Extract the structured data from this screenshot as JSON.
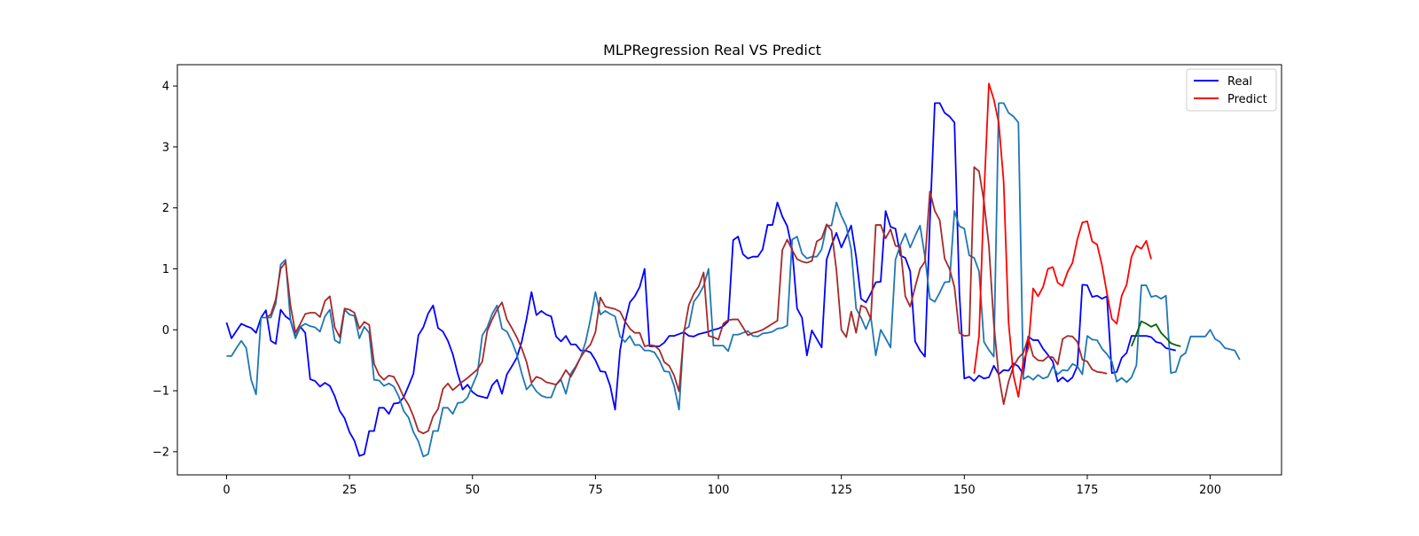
{
  "chart_data": {
    "type": "line",
    "title": "MLPRegression Real VS Predict",
    "xlabel": "",
    "ylabel": "",
    "xlim": [
      -10,
      214.5
    ],
    "ylim": [
      -2.38,
      4.35
    ],
    "xticks": [
      0,
      25,
      50,
      75,
      100,
      125,
      150,
      175,
      200
    ],
    "yticks": [
      -2,
      -1,
      0,
      1,
      2,
      3,
      4
    ],
    "grid": false,
    "legend": {
      "placement": "top-right",
      "entries": [
        {
          "label": "Real",
          "color": "#0000ff"
        },
        {
          "label": "Predict",
          "color": "#ff0000"
        }
      ]
    },
    "series": [
      {
        "name": "Real",
        "color": "#0000ff",
        "x_start": 0,
        "values": [
          0.12,
          -0.14,
          -0.02,
          0.1,
          0.06,
          0.03,
          -0.05,
          0.2,
          0.32,
          -0.18,
          -0.23,
          0.33,
          0.22,
          0.16,
          -0.12,
          0.05,
          -0.05,
          -0.81,
          -0.84,
          -0.93,
          -0.87,
          -0.92,
          -1.09,
          -1.33,
          -1.45,
          -1.68,
          -1.82,
          -2.07,
          -2.04,
          -1.66,
          -1.66,
          -1.28,
          -1.28,
          -1.38,
          -1.21,
          -1.2,
          -1.11,
          -0.92,
          -0.72,
          -0.09,
          0.04,
          0.27,
          0.4,
          0.03,
          -0.03,
          -0.18,
          -0.4,
          -0.72,
          -0.98,
          -0.9,
          -1.02,
          -1.08,
          -1.1,
          -1.12,
          -0.91,
          -0.82,
          -1.05,
          -0.73,
          -0.6,
          -0.46,
          -0.2,
          0.18,
          0.62,
          0.24,
          0.31,
          0.25,
          0.22,
          -0.11,
          -0.19,
          -0.1,
          -0.24,
          -0.24,
          -0.34,
          -0.34,
          -0.37,
          -0.5,
          -0.68,
          -0.69,
          -0.92,
          -1.31,
          -0.34,
          0.11,
          0.45,
          0.55,
          0.7,
          1.0,
          -0.27,
          -0.27,
          -0.27,
          -0.21,
          -0.1,
          -0.1,
          -0.07,
          -0.04,
          -0.1,
          -0.11,
          -0.07,
          -0.05,
          -0.03,
          0.0,
          0.02,
          0.06,
          0.14,
          1.47,
          1.53,
          1.24,
          1.17,
          1.2,
          1.2,
          1.32,
          1.72,
          1.72,
          2.09,
          1.86,
          1.7,
          1.32,
          0.35,
          0.2,
          -0.42,
          -0.01,
          -0.15,
          -0.29,
          1.15,
          1.39,
          1.59,
          1.35,
          1.53,
          1.71,
          1.2,
          0.51,
          0.45,
          0.6,
          0.78,
          0.79,
          1.95,
          1.69,
          1.66,
          1.22,
          1.18,
          0.96,
          -0.19,
          -0.34,
          -0.44,
          1.77,
          3.72,
          3.72,
          3.56,
          3.5,
          3.4,
          0.6,
          -0.8,
          -0.77,
          -0.84,
          -0.75,
          -0.8,
          -0.78,
          -0.59,
          -0.73,
          -0.66,
          -0.67,
          -0.55,
          -0.6,
          -0.73,
          -0.11,
          -0.17,
          -0.17,
          -0.31,
          -0.41,
          -0.52,
          -0.85,
          -0.78,
          -0.85,
          -0.78,
          -0.59,
          0.74,
          0.73,
          0.54,
          0.56,
          0.51,
          0.55,
          -0.71,
          -0.69,
          -0.46,
          -0.38,
          -0.1,
          -0.1,
          -0.1,
          -0.1,
          -0.12,
          -0.2,
          -0.22,
          -0.3,
          -0.32,
          -0.34
        ]
      },
      {
        "color": "#1f77b4",
        "x_start": 0,
        "values": [
          -0.43,
          -0.43,
          -0.3,
          -0.18,
          -0.3,
          -0.82,
          -1.06,
          0.2,
          0.2,
          0.2,
          0.43,
          1.07,
          1.15,
          0.15,
          -0.14,
          0.05,
          0.1,
          0.06,
          0.04,
          -0.03,
          0.22,
          0.33,
          -0.17,
          -0.22,
          0.33,
          0.25,
          0.23,
          -0.14,
          0.05,
          -0.05,
          -0.82,
          -0.83,
          -0.92,
          -0.88,
          -0.93,
          -1.09,
          -1.33,
          -1.44,
          -1.68,
          -1.83,
          -2.08,
          -2.04,
          -1.66,
          -1.66,
          -1.28,
          -1.28,
          -1.38,
          -1.2,
          -1.19,
          -1.11,
          -0.91,
          -0.72,
          -0.09,
          0.04,
          0.26,
          0.4,
          0.02,
          -0.03,
          -0.19,
          -0.4,
          -0.71,
          -0.98,
          -0.89,
          -1.01,
          -1.08,
          -1.11,
          -1.11,
          -0.9,
          -0.82,
          -1.05,
          -0.72,
          -0.6,
          -0.45,
          -0.2,
          0.18,
          0.62,
          0.25,
          0.31,
          0.26,
          0.22,
          -0.11,
          -0.2,
          -0.1,
          -0.25,
          -0.25,
          -0.34,
          -0.34,
          -0.37,
          -0.5,
          -0.68,
          -0.69,
          -0.92,
          -1.31,
          0.0,
          0.05,
          0.46,
          0.57,
          0.72,
          1.0,
          -0.26,
          -0.26,
          -0.26,
          -0.35,
          -0.08,
          -0.08,
          -0.05,
          -0.02,
          -0.1,
          -0.11,
          -0.06,
          -0.05,
          -0.03,
          0.02,
          0.03,
          0.07,
          1.48,
          1.53,
          1.25,
          1.17,
          1.2,
          1.2,
          1.32,
          1.71,
          1.71,
          2.09,
          1.87,
          1.7,
          1.32,
          0.35,
          0.2,
          0.01,
          0.21,
          -0.42,
          0.0,
          -0.14,
          -0.29,
          1.15,
          1.39,
          1.58,
          1.35,
          1.54,
          1.71,
          1.2,
          0.51,
          0.46,
          0.61,
          0.78,
          0.79,
          1.95,
          1.7,
          1.66,
          1.22,
          1.18,
          0.96,
          -0.2,
          -0.33,
          -0.44,
          3.72,
          3.72,
          3.56,
          3.5,
          3.4,
          -0.81,
          -0.76,
          -0.82,
          -0.74,
          -0.8,
          -0.77,
          -0.6,
          -0.73,
          -0.66,
          -0.67,
          -0.56,
          -0.6,
          -0.73,
          -0.1,
          -0.16,
          -0.17,
          -0.31,
          -0.4,
          -0.52,
          -0.85,
          -0.79,
          -0.86,
          -0.78,
          -0.58,
          0.73,
          0.73,
          0.54,
          0.56,
          0.51,
          0.56,
          -0.71,
          -0.69,
          -0.44,
          -0.38,
          -0.11,
          -0.11,
          -0.11,
          -0.11,
          0.0,
          -0.15,
          -0.2,
          -0.3,
          -0.32,
          -0.34,
          -0.49
        ]
      },
      {
        "color": "#a52a2a",
        "x_start": 8,
        "values": [
          0.2,
          0.25,
          0.5,
          1.0,
          1.11,
          0.4,
          -0.05,
          0.1,
          0.26,
          0.28,
          0.28,
          0.21,
          0.47,
          0.55,
          0.04,
          -0.12,
          0.35,
          0.33,
          0.28,
          0.02,
          0.13,
          0.08,
          -0.56,
          -0.74,
          -0.82,
          -0.75,
          -0.77,
          -0.92,
          -1.1,
          -1.23,
          -1.42,
          -1.66,
          -1.7,
          -1.66,
          -1.42,
          -1.3,
          -0.97,
          -0.88,
          -0.99,
          -0.92,
          -0.85,
          -0.79,
          -0.72,
          -0.65,
          -0.52,
          -0.02,
          0.17,
          0.33,
          0.45,
          0.17,
          0.03,
          -0.12,
          -0.3,
          -0.53,
          -0.87,
          -0.77,
          -0.8,
          -0.86,
          -0.88,
          -0.9,
          -0.8,
          -0.66,
          -0.77,
          -0.62,
          -0.45,
          -0.33,
          -0.24,
          -0.04,
          0.53,
          0.38,
          0.36,
          0.34,
          0.3,
          0.14,
          0.02,
          -0.05,
          -0.05,
          -0.27,
          -0.25,
          -0.26,
          -0.33,
          -0.53,
          -0.59,
          -0.75,
          -1.01,
          -0.04,
          0.41,
          0.59,
          0.71,
          0.94,
          -0.1,
          -0.12,
          -0.16,
          0.1,
          0.16,
          0.17,
          0.17,
          0.04,
          -0.09,
          -0.05,
          -0.03,
          0.0,
          0.05,
          0.1,
          0.15,
          1.31,
          1.48,
          1.31,
          1.16,
          1.12,
          1.1,
          1.13,
          1.45,
          1.5,
          1.73,
          1.63,
          0.98,
          0.0,
          -0.12,
          0.3,
          -0.05,
          0.4,
          0.36,
          0.18,
          1.72,
          1.72,
          1.5,
          1.65,
          1.38,
          1.36,
          0.55,
          0.38,
          0.7,
          1.0,
          1.12,
          2.27,
          1.95,
          1.8,
          1.17,
          1.0,
          0.7,
          -0.05,
          -0.1,
          -0.09,
          2.67,
          2.6,
          2.1,
          1.38,
          0.1,
          -0.75,
          -1.22,
          -0.85,
          -0.6,
          -0.46,
          -0.38,
          -0.13,
          -0.43,
          -0.5,
          -0.51,
          -0.44,
          -0.45,
          -0.57,
          -0.15,
          -0.1,
          -0.11,
          -0.2,
          -0.49,
          -0.52,
          -0.65,
          -0.69,
          -0.7,
          -0.72
        ]
      },
      {
        "name": "Predict",
        "color": "#ff0000",
        "x_start": 152,
        "values": [
          -0.72,
          -0.1,
          2.2,
          4.04,
          3.78,
          3.4,
          2.43,
          0.12,
          -0.75,
          -1.1,
          -0.52,
          -0.3,
          0.68,
          0.55,
          0.7,
          1.0,
          1.03,
          0.77,
          0.72,
          0.95,
          1.1,
          1.49,
          1.76,
          1.78,
          1.45,
          1.4,
          1.06,
          0.6,
          0.18,
          0.1,
          0.56,
          0.74,
          1.2,
          1.38,
          1.33,
          1.46,
          1.16
        ]
      },
      {
        "color": "#006400",
        "x_start": 184,
        "values": [
          -0.27,
          -0.07,
          0.14,
          0.1,
          0.05,
          0.09,
          -0.05,
          -0.13,
          -0.22,
          -0.25,
          -0.27
        ]
      }
    ]
  }
}
